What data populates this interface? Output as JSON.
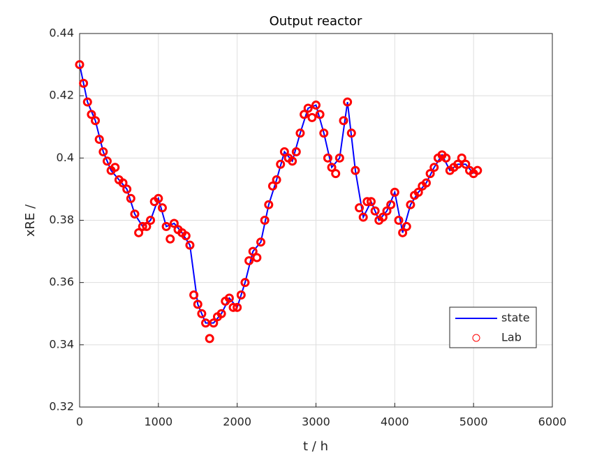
{
  "chart_data": {
    "type": "line",
    "title": "Output reactor",
    "x_label": "t / h",
    "y_label": "xRE /",
    "xlim": [
      0,
      6000
    ],
    "xticks": [
      0,
      1000,
      2000,
      3000,
      4000,
      5000,
      6000
    ],
    "ylim": [
      0.32,
      0.44
    ],
    "yticks": [
      0.32,
      0.34,
      0.36,
      0.38,
      0.4,
      0.42,
      0.44
    ],
    "grid": true,
    "legend": "lower-right",
    "series": [
      {
        "name": "state",
        "color": "#0000ff",
        "style": "line",
        "x": [
          0,
          100,
          200,
          300,
          400,
          500,
          600,
          700,
          800,
          900,
          1000,
          1100,
          1200,
          1300,
          1400,
          1500,
          1600,
          1700,
          1800,
          1900,
          2000,
          2100,
          2200,
          2300,
          2400,
          2500,
          2600,
          2700,
          2800,
          2900,
          3000,
          3100,
          3200,
          3300,
          3400,
          3500,
          3600,
          3700,
          3800,
          3900,
          4000,
          4100,
          4200,
          4300,
          4400,
          4500,
          4600,
          4700,
          4800,
          4900,
          5000
        ],
        "values": [
          0.43,
          0.418,
          0.412,
          0.402,
          0.396,
          0.393,
          0.39,
          0.382,
          0.378,
          0.38,
          0.387,
          0.378,
          0.379,
          0.376,
          0.372,
          0.353,
          0.347,
          0.347,
          0.35,
          0.355,
          0.352,
          0.36,
          0.37,
          0.373,
          0.385,
          0.393,
          0.402,
          0.399,
          0.408,
          0.416,
          0.417,
          0.408,
          0.397,
          0.4,
          0.418,
          0.396,
          0.381,
          0.386,
          0.38,
          0.383,
          0.389,
          0.376,
          0.385,
          0.389,
          0.392,
          0.397,
          0.401,
          0.396,
          0.398,
          0.398,
          0.395
        ]
      },
      {
        "name": "Lab",
        "color": "#ff0000",
        "style": "marker",
        "x": [
          0,
          50,
          100,
          150,
          200,
          250,
          300,
          350,
          400,
          450,
          500,
          550,
          600,
          650,
          700,
          750,
          800,
          850,
          900,
          950,
          1000,
          1050,
          1100,
          1150,
          1200,
          1250,
          1300,
          1350,
          1400,
          1450,
          1500,
          1550,
          1600,
          1650,
          1700,
          1750,
          1800,
          1850,
          1900,
          1950,
          2000,
          2050,
          2100,
          2150,
          2200,
          2250,
          2300,
          2350,
          2400,
          2450,
          2500,
          2550,
          2600,
          2650,
          2700,
          2750,
          2800,
          2850,
          2900,
          2950,
          3000,
          3050,
          3100,
          3150,
          3200,
          3250,
          3300,
          3350,
          3400,
          3450,
          3500,
          3550,
          3600,
          3650,
          3700,
          3750,
          3800,
          3850,
          3900,
          3950,
          4000,
          4050,
          4100,
          4150,
          4200,
          4250,
          4300,
          4350,
          4400,
          4450,
          4500,
          4550,
          4600,
          4650,
          4700,
          4750,
          4800,
          4850,
          4900,
          4950,
          5000,
          5050
        ],
        "values": [
          0.43,
          0.424,
          0.418,
          0.414,
          0.412,
          0.406,
          0.402,
          0.399,
          0.396,
          0.397,
          0.393,
          0.392,
          0.39,
          0.387,
          0.382,
          0.376,
          0.378,
          0.378,
          0.38,
          0.386,
          0.387,
          0.384,
          0.378,
          0.374,
          0.379,
          0.377,
          0.376,
          0.375,
          0.372,
          0.356,
          0.353,
          0.35,
          0.347,
          0.342,
          0.347,
          0.349,
          0.35,
          0.354,
          0.355,
          0.352,
          0.352,
          0.356,
          0.36,
          0.367,
          0.37,
          0.368,
          0.373,
          0.38,
          0.385,
          0.391,
          0.393,
          0.398,
          0.402,
          0.4,
          0.399,
          0.402,
          0.408,
          0.414,
          0.416,
          0.413,
          0.417,
          0.414,
          0.408,
          0.4,
          0.397,
          0.395,
          0.4,
          0.412,
          0.418,
          0.408,
          0.396,
          0.384,
          0.381,
          0.386,
          0.386,
          0.383,
          0.38,
          0.381,
          0.383,
          0.385,
          0.389,
          0.38,
          0.376,
          0.378,
          0.385,
          0.388,
          0.389,
          0.391,
          0.392,
          0.395,
          0.397,
          0.4,
          0.401,
          0.4,
          0.396,
          0.397,
          0.398,
          0.4,
          0.398,
          0.396,
          0.395,
          0.396
        ]
      }
    ]
  }
}
